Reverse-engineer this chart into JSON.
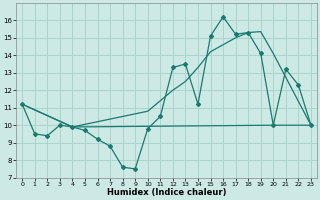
{
  "xlabel": "Humidex (Indice chaleur)",
  "xlim": [
    -0.5,
    23.5
  ],
  "ylim": [
    7.0,
    17.0
  ],
  "yticks": [
    7,
    8,
    9,
    10,
    11,
    12,
    13,
    14,
    15,
    16
  ],
  "xticks": [
    0,
    1,
    2,
    3,
    4,
    5,
    6,
    7,
    8,
    9,
    10,
    11,
    12,
    13,
    14,
    15,
    16,
    17,
    18,
    19,
    20,
    21,
    22,
    23
  ],
  "bg_color": "#cce9e5",
  "grid_color": "#aad4ce",
  "line_color": "#1a7a6e",
  "line1_x": [
    0,
    1,
    2,
    3,
    4,
    5,
    6,
    7,
    8,
    9,
    10,
    11,
    12,
    13,
    14,
    15,
    16,
    17,
    18,
    19,
    20,
    21,
    22,
    23
  ],
  "line1_y": [
    11.2,
    9.5,
    9.4,
    10.0,
    9.9,
    9.7,
    9.2,
    8.8,
    7.6,
    7.5,
    9.8,
    10.5,
    13.3,
    13.5,
    11.2,
    15.1,
    16.2,
    15.2,
    15.3,
    14.1,
    10.0,
    13.2,
    12.3,
    10.0
  ],
  "line2_x": [
    0,
    4,
    20,
    23
  ],
  "line2_y": [
    11.2,
    9.9,
    10.0,
    10.0
  ],
  "line3_x": [
    0,
    4,
    10,
    11,
    12,
    13,
    14,
    15,
    16,
    17,
    18,
    19,
    20,
    23
  ],
  "line3_y": [
    11.2,
    9.9,
    10.8,
    11.4,
    12.0,
    12.5,
    13.3,
    14.2,
    14.6,
    15.0,
    15.3,
    15.35,
    14.1,
    10.0
  ]
}
